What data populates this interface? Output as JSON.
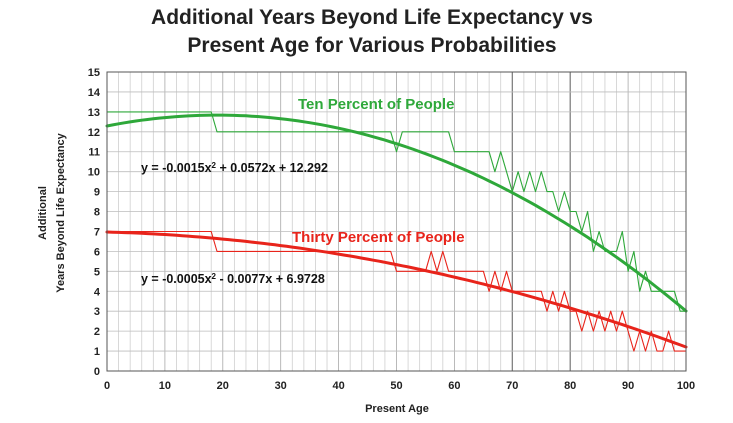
{
  "chart_data": {
    "type": "line",
    "title_line1": "Additional Years Beyond Life Expectancy vs",
    "title_line2": "Present Age for Various Probabilities",
    "xlabel": "Present Age",
    "ylabel_line1": "Additional",
    "ylabel_line2": "Years Beyond Life Expectancy",
    "xlim": [
      0,
      100
    ],
    "ylim": [
      0,
      15
    ],
    "x_ticks": [
      "0",
      "10",
      "20",
      "30",
      "40",
      "50",
      "60",
      "70",
      "80",
      "90",
      "100"
    ],
    "y_ticks": [
      "0",
      "1",
      "2",
      "3",
      "4",
      "5",
      "6",
      "7",
      "8",
      "9",
      "10",
      "11",
      "12",
      "13",
      "14",
      "15"
    ],
    "grid": true,
    "series": [
      {
        "name": "Ten Percent of People",
        "label": "Ten Percent of People",
        "color": "#2ea83a",
        "equation": "y = -0.0015x² + 0.0572x + 12.292",
        "trend": {
          "a": -0.0015,
          "b": 0.0572,
          "c": 12.292
        },
        "raw_x": [
          0,
          17,
          18,
          19,
          20,
          49,
          50,
          51,
          52,
          59,
          60,
          65,
          66,
          67,
          68,
          69,
          70,
          71,
          72,
          73,
          74,
          75,
          76,
          77,
          78,
          79,
          80,
          81,
          82,
          83,
          84,
          85,
          86,
          87,
          88,
          89,
          90,
          91,
          92,
          93,
          94,
          95,
          96,
          97,
          98,
          99,
          100
        ],
        "raw_y": [
          13,
          13,
          13,
          12,
          12,
          12,
          11,
          12,
          12,
          12,
          11,
          11,
          11,
          10,
          11,
          10,
          9,
          10,
          9,
          10,
          9,
          10,
          9,
          9,
          8,
          9,
          8,
          8,
          7,
          8,
          6,
          7,
          6,
          6,
          6,
          7,
          5,
          6,
          4,
          5,
          4,
          4,
          4,
          4,
          4,
          3,
          3
        ]
      },
      {
        "name": "Thirty Percent of People",
        "label": "Thirty Percent of People",
        "color": "#e8241b",
        "equation": "y = -0.0005x² - 0.0077x + 6.9728",
        "trend": {
          "a": -0.0005,
          "b": -0.0077,
          "c": 6.9728
        },
        "raw_x": [
          0,
          18,
          19,
          20,
          49,
          50,
          55,
          56,
          57,
          58,
          59,
          60,
          65,
          66,
          67,
          68,
          69,
          70,
          71,
          72,
          73,
          74,
          75,
          76,
          77,
          78,
          79,
          80,
          81,
          82,
          83,
          84,
          85,
          86,
          87,
          88,
          89,
          90,
          91,
          92,
          93,
          94,
          95,
          96,
          97,
          98,
          99,
          100
        ],
        "raw_y": [
          7,
          7,
          6,
          6,
          6,
          5,
          5,
          6,
          5,
          6,
          5,
          5,
          5,
          4,
          5,
          4,
          5,
          4,
          4,
          4,
          4,
          4,
          4,
          3,
          4,
          3,
          4,
          3,
          3,
          2,
          3,
          2,
          3,
          2,
          3,
          2,
          3,
          2,
          1,
          2,
          1,
          2,
          1,
          1,
          2,
          1,
          1,
          1
        ]
      }
    ]
  }
}
